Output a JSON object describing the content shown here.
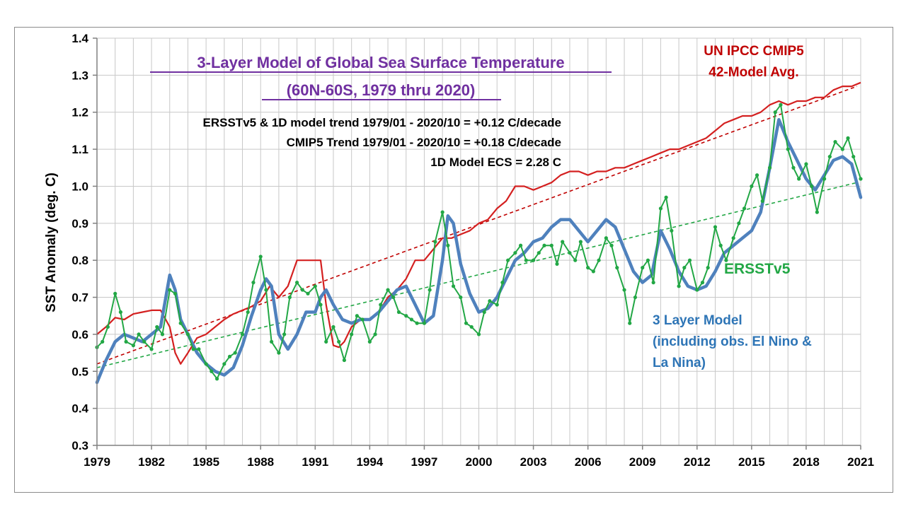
{
  "chart_data": {
    "type": "line",
    "title": [
      "3-Layer  Model of Global Sea Surface Temperature",
      "(60N-60S, 1979 thru 2020)"
    ],
    "ylabel": "SST Anomaly (deg. C)",
    "xlabel": "",
    "xlim": [
      1979,
      2021
    ],
    "ylim": [
      0.3,
      1.4
    ],
    "x_ticks": [
      "1979",
      "1982",
      "1985",
      "1988",
      "1991",
      "1994",
      "1997",
      "2000",
      "2003",
      "2006",
      "2009",
      "2012",
      "2015",
      "2018",
      "2021"
    ],
    "y_ticks": [
      "0.3",
      "0.4",
      "0.5",
      "0.6",
      "0.7",
      "0.8",
      "0.9",
      "1.0",
      "1.1",
      "1.2",
      "1.3",
      "1.4"
    ],
    "grid": true,
    "annotations": [
      "ERSSTv5 & 1D model trend 1979/01 - 2020/10 = +0.12 C/decade",
      "CMIP5 Trend 1979/01 - 2020/10 =  +0.18 C/decade",
      "1D Model ECS = 2.28 C"
    ],
    "series_labels": {
      "cmip5": [
        "UN IPCC CMIP5",
        "42-Model Avg."
      ],
      "ersst": [
        "ERSSTv5"
      ],
      "model": [
        "3 Layer Model",
        "(including obs. El Nino &",
        "La Nina)"
      ]
    },
    "series": [
      {
        "name": "UN IPCC CMIP5 42-Model Avg.",
        "color": "#d42020",
        "x": [
          1979,
          1979.5,
          1980,
          1980.5,
          1981,
          1981.5,
          1982,
          1982.5,
          1983,
          1983.3,
          1983.6,
          1984,
          1984.5,
          1985,
          1985.5,
          1986,
          1986.5,
          1987,
          1987.5,
          1988,
          1988.5,
          1989,
          1989.5,
          1990,
          1990.5,
          1991,
          1991.3,
          1991.6,
          1992,
          1992.3,
          1992.6,
          1993,
          1993.5,
          1994,
          1994.5,
          1995,
          1995.5,
          1996,
          1996.5,
          1997,
          1997.5,
          1998,
          1998.5,
          1999,
          1999.5,
          2000,
          2000.5,
          2001,
          2001.5,
          2002,
          2002.5,
          2003,
          2003.5,
          2004,
          2004.5,
          2005,
          2005.5,
          2006,
          2006.5,
          2007,
          2007.5,
          2008,
          2008.5,
          2009,
          2009.5,
          2010,
          2010.5,
          2011,
          2011.5,
          2012,
          2012.5,
          2013,
          2013.5,
          2014,
          2014.5,
          2015,
          2015.5,
          2016,
          2016.5,
          2017,
          2017.5,
          2018,
          2018.5,
          2019,
          2019.5,
          2020,
          2020.5,
          2021
        ],
        "values": [
          0.6,
          0.62,
          0.645,
          0.64,
          0.655,
          0.66,
          0.665,
          0.665,
          0.62,
          0.55,
          0.52,
          0.55,
          0.59,
          0.6,
          0.62,
          0.64,
          0.655,
          0.665,
          0.675,
          0.69,
          0.73,
          0.7,
          0.73,
          0.8,
          0.8,
          0.8,
          0.8,
          0.68,
          0.57,
          0.565,
          0.58,
          0.62,
          0.64,
          0.64,
          0.66,
          0.7,
          0.72,
          0.75,
          0.8,
          0.8,
          0.83,
          0.86,
          0.86,
          0.87,
          0.88,
          0.9,
          0.91,
          0.94,
          0.96,
          1.0,
          1.0,
          0.99,
          1.0,
          1.01,
          1.03,
          1.04,
          1.04,
          1.03,
          1.04,
          1.04,
          1.05,
          1.05,
          1.06,
          1.07,
          1.08,
          1.09,
          1.1,
          1.1,
          1.11,
          1.12,
          1.13,
          1.15,
          1.17,
          1.18,
          1.19,
          1.19,
          1.2,
          1.22,
          1.23,
          1.22,
          1.23,
          1.23,
          1.24,
          1.24,
          1.26,
          1.27,
          1.27,
          1.28
        ]
      },
      {
        "name": "ERSSTv5",
        "color": "#22a745",
        "x": [
          1979,
          1979.3,
          1979.6,
          1980,
          1980.3,
          1980.6,
          1981,
          1981.3,
          1981.6,
          1982,
          1982.3,
          1982.6,
          1983,
          1983.3,
          1983.6,
          1984,
          1984.3,
          1984.6,
          1985,
          1985.3,
          1985.6,
          1986,
          1986.3,
          1986.6,
          1987,
          1987.3,
          1987.6,
          1988,
          1988.3,
          1988.6,
          1989,
          1989.3,
          1989.6,
          1990,
          1990.3,
          1990.6,
          1991,
          1991.3,
          1991.6,
          1992,
          1992.3,
          1992.6,
          1993,
          1993.3,
          1993.6,
          1994,
          1994.3,
          1994.6,
          1995,
          1995.3,
          1995.6,
          1996,
          1996.3,
          1996.6,
          1997,
          1997.3,
          1997.6,
          1998,
          1998.3,
          1998.6,
          1999,
          1999.3,
          1999.6,
          2000,
          2000.3,
          2000.6,
          2001,
          2001.3,
          2001.6,
          2002,
          2002.3,
          2002.6,
          2003,
          2003.3,
          2003.6,
          2004,
          2004.3,
          2004.6,
          2005,
          2005.3,
          2005.6,
          2006,
          2006.3,
          2006.6,
          2007,
          2007.3,
          2007.6,
          2008,
          2008.3,
          2008.6,
          2009,
          2009.3,
          2009.6,
          2010,
          2010.3,
          2010.6,
          2011,
          2011.3,
          2011.6,
          2012,
          2012.3,
          2012.6,
          2013,
          2013.3,
          2013.6,
          2014,
          2014.3,
          2014.6,
          2015,
          2015.3,
          2015.6,
          2016,
          2016.3,
          2016.6,
          2017,
          2017.3,
          2017.6,
          2018,
          2018.3,
          2018.6,
          2019,
          2019.3,
          2019.6,
          2020,
          2020.3,
          2020.6,
          2021
        ],
        "values": [
          0.565,
          0.58,
          0.62,
          0.71,
          0.66,
          0.58,
          0.57,
          0.6,
          0.58,
          0.56,
          0.62,
          0.6,
          0.72,
          0.71,
          0.63,
          0.6,
          0.56,
          0.56,
          0.52,
          0.5,
          0.48,
          0.52,
          0.54,
          0.55,
          0.6,
          0.66,
          0.74,
          0.81,
          0.72,
          0.58,
          0.55,
          0.6,
          0.7,
          0.74,
          0.72,
          0.71,
          0.73,
          0.68,
          0.58,
          0.62,
          0.58,
          0.53,
          0.6,
          0.65,
          0.64,
          0.58,
          0.6,
          0.68,
          0.72,
          0.7,
          0.66,
          0.65,
          0.64,
          0.63,
          0.63,
          0.72,
          0.85,
          0.93,
          0.84,
          0.73,
          0.7,
          0.63,
          0.62,
          0.6,
          0.66,
          0.69,
          0.68,
          0.74,
          0.8,
          0.82,
          0.84,
          0.8,
          0.8,
          0.82,
          0.84,
          0.84,
          0.79,
          0.85,
          0.82,
          0.8,
          0.85,
          0.78,
          0.77,
          0.8,
          0.86,
          0.84,
          0.78,
          0.72,
          0.63,
          0.7,
          0.78,
          0.8,
          0.74,
          0.94,
          0.97,
          0.88,
          0.73,
          0.78,
          0.8,
          0.72,
          0.74,
          0.78,
          0.89,
          0.84,
          0.8,
          0.86,
          0.9,
          0.94,
          1.0,
          1.03,
          0.96,
          1.05,
          1.2,
          1.22,
          1.1,
          1.05,
          1.02,
          1.06,
          1.0,
          0.93,
          1.02,
          1.08,
          1.12,
          1.1,
          1.13,
          1.08,
          1.02
        ]
      },
      {
        "name": "3 Layer Model",
        "color": "#4f81bd",
        "x": [
          1979,
          1979.5,
          1980,
          1980.5,
          1981,
          1981.5,
          1982,
          1982.5,
          1983,
          1983.3,
          1983.6,
          1984,
          1984.5,
          1985,
          1985.5,
          1986,
          1986.5,
          1987,
          1987.5,
          1988,
          1988.3,
          1988.6,
          1989,
          1989.5,
          1990,
          1990.5,
          1991,
          1991.3,
          1991.6,
          1992,
          1992.5,
          1993,
          1993.5,
          1994,
          1994.5,
          1995,
          1995.5,
          1996,
          1996.5,
          1997,
          1997.5,
          1998,
          1998.3,
          1998.6,
          1999,
          1999.5,
          2000,
          2000.5,
          2001,
          2001.5,
          2002,
          2002.5,
          2003,
          2003.5,
          2004,
          2004.5,
          2005,
          2005.5,
          2006,
          2006.5,
          2007,
          2007.5,
          2008,
          2008.5,
          2009,
          2009.5,
          2010,
          2010.5,
          2011,
          2011.5,
          2012,
          2012.5,
          2013,
          2013.5,
          2014,
          2014.5,
          2015,
          2015.5,
          2016,
          2016.5,
          2017,
          2017.5,
          2018,
          2018.5,
          2019,
          2019.5,
          2020,
          2020.5,
          2021
        ],
        "values": [
          0.47,
          0.53,
          0.58,
          0.6,
          0.59,
          0.58,
          0.6,
          0.62,
          0.76,
          0.72,
          0.64,
          0.6,
          0.55,
          0.52,
          0.5,
          0.49,
          0.51,
          0.57,
          0.65,
          0.72,
          0.75,
          0.73,
          0.6,
          0.56,
          0.6,
          0.66,
          0.66,
          0.7,
          0.72,
          0.68,
          0.64,
          0.63,
          0.64,
          0.64,
          0.66,
          0.69,
          0.72,
          0.73,
          0.68,
          0.63,
          0.65,
          0.8,
          0.92,
          0.9,
          0.79,
          0.71,
          0.66,
          0.67,
          0.7,
          0.75,
          0.8,
          0.82,
          0.85,
          0.86,
          0.89,
          0.91,
          0.91,
          0.88,
          0.85,
          0.88,
          0.91,
          0.89,
          0.83,
          0.77,
          0.74,
          0.76,
          0.88,
          0.83,
          0.77,
          0.73,
          0.72,
          0.73,
          0.77,
          0.82,
          0.84,
          0.86,
          0.88,
          0.93,
          1.05,
          1.18,
          1.12,
          1.07,
          1.02,
          0.99,
          1.03,
          1.07,
          1.08,
          1.06,
          0.97
        ]
      }
    ],
    "trend_lines": [
      {
        "name": "CMIP5 trend",
        "color": "#c00000",
        "x": [
          1979,
          2020.8
        ],
        "values": [
          0.52,
          1.27
        ]
      },
      {
        "name": "ERSSTv5 & 1D model trend",
        "color": "#22a745",
        "x": [
          1979,
          2020.8
        ],
        "values": [
          0.51,
          1.01
        ]
      }
    ]
  }
}
